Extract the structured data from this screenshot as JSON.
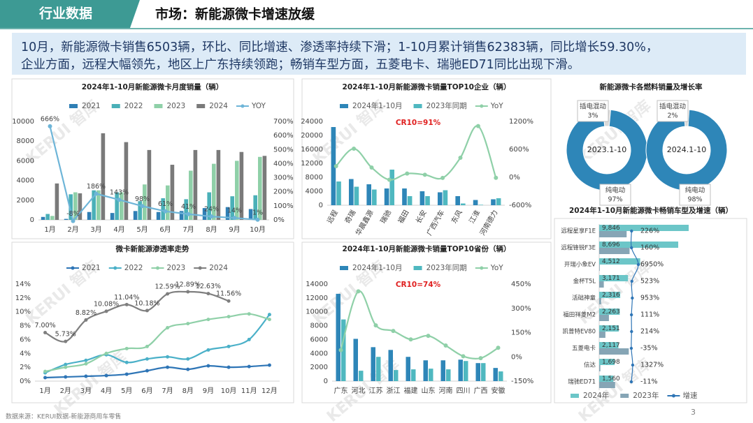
{
  "header": {
    "tag": "行业数据",
    "title": "市场：新能源微卡增速放缓"
  },
  "summary": [
    "10月，新能源微卡销售6503辆，环比、同比增速、渗透率持续下滑；1-10月累计销售62383辆，同比增长59.30%，",
    "企业方面，远程大幅领先，地区上广东持续领跑；畅销车型方面，五菱电卡、瑞驰ED71同比出现下滑。"
  ],
  "watermark": "KERUI 智库",
  "footer": {
    "source": "数据来源：KERUI数据-新能源商用车零售",
    "page": "3"
  },
  "chart_data": [
    {
      "type": "bar",
      "title": "2024年1-10月新能源微卡月度销量（辆）",
      "categories": [
        "1月",
        "2月",
        "3月",
        "4月",
        "5月",
        "6月",
        "7月",
        "8月",
        "9月",
        "10月"
      ],
      "series": [
        {
          "name": "2021",
          "color": "#2f7fb5",
          "values": [
            300,
            100,
            800,
            700,
            900,
            800,
            900,
            1200,
            1300,
            1100
          ]
        },
        {
          "name": "2022",
          "color": "#4ab0b8",
          "values": [
            600,
            2600,
            3000,
            2800,
            1900,
            2200,
            2100,
            2800,
            2400,
            2500
          ]
        },
        {
          "name": "2023",
          "color": "#8fd0a8",
          "values": [
            400,
            2800,
            3000,
            2800,
            3600,
            3500,
            5000,
            5700,
            6000,
            6400
          ]
        },
        {
          "name": "2024",
          "color": "#7a7a7a",
          "values": [
            3700,
            2700,
            8800,
            7900,
            7100,
            5600,
            7100,
            7100,
            6900,
            6503
          ]
        },
        {
          "name": "YOY",
          "color": "#6eb5d8",
          "type": "line",
          "axis": "y2",
          "values": [
            666,
            -8,
            186,
            143,
            98,
            61,
            41,
            24,
            14,
            1
          ],
          "value_labels": [
            "666%",
            "-8%",
            "186%",
            "143%",
            "98%",
            "61%",
            "41%",
            "24%",
            "14%",
            "1%"
          ]
        }
      ],
      "ylim": [
        0,
        10000
      ],
      "yticks": [
        0,
        2000,
        4000,
        6000,
        8000,
        10000
      ],
      "y2lim": [
        0,
        700
      ],
      "y2ticks": [
        {
          "value": 0,
          "label": "0%"
        },
        {
          "value": 100,
          "label": "100%"
        },
        {
          "value": 200,
          "label": "200%"
        },
        {
          "value": 300,
          "label": "300%"
        },
        {
          "value": 400,
          "label": "400%"
        },
        {
          "value": 500,
          "label": "500%"
        },
        {
          "value": 600,
          "label": "600%"
        },
        {
          "value": 700,
          "label": "700%"
        }
      ]
    },
    {
      "type": "bar",
      "title": "2024年1-10月新能源微卡销量TOP10企业（辆）",
      "annotation": "CR10=91%",
      "categories": [
        "远程",
        "奇瑞",
        "华晨鑫源",
        "瑞驰",
        "福田",
        "长安",
        "广西汽车",
        "东风",
        "江淮",
        "河南德力"
      ],
      "series": [
        {
          "name": "2024年1-10月",
          "color": "#2e86b8",
          "values": [
            22400,
            7500,
            6000,
            4800,
            4800,
            4000,
            3700,
            2600,
            1500,
            1700
          ]
        },
        {
          "name": "2023年同期",
          "color": "#4fb8c0",
          "values": [
            6800,
            5300,
            4500,
            10200,
            2600,
            2600,
            4300,
            500,
            130,
            2000
          ]
        },
        {
          "name": "YoY",
          "color": "#8fd0a8",
          "type": "line",
          "axis": "y2",
          "smooth": true,
          "values": [
            240,
            615,
            210,
            -53,
            80,
            54,
            -14,
            420,
            1100,
            -12
          ]
        }
      ],
      "ylim": [
        0,
        24000
      ],
      "yticks": [
        0,
        4000,
        8000,
        12000,
        16000,
        20000,
        24000
      ],
      "y2lim": [
        -600,
        1200
      ],
      "y2ticks": [
        {
          "value": -600,
          "label": "-600%"
        },
        {
          "value": 0,
          "label": "0%"
        },
        {
          "value": 600,
          "label": "600%"
        },
        {
          "value": 1200,
          "label": "1200%"
        }
      ]
    },
    {
      "type": "pie",
      "title": "新能源微卡各燃料销量及增长率",
      "colors": [
        "#d9d9d9",
        "#2e86b8"
      ],
      "pies": [
        {
          "label": "2023.1-10",
          "categories": [
            "插电混动",
            "纯电动"
          ],
          "values": [
            3,
            97
          ],
          "value_labels": [
            "3%",
            "97%"
          ]
        },
        {
          "label": "2024.1-10",
          "categories": [
            "插电混动",
            "纯电动"
          ],
          "values": [
            2,
            98
          ],
          "value_labels": [
            "2%",
            "98%"
          ]
        }
      ]
    },
    {
      "type": "line",
      "title": "微卡新能源渗透率走势",
      "smooth": true,
      "categories": [
        "1月",
        "2月",
        "3月",
        "4月",
        "5月",
        "6月",
        "7月",
        "8月",
        "9月",
        "10月",
        "11月",
        "12月"
      ],
      "series": [
        {
          "name": "2021",
          "color": "#2e75b6",
          "values": [
            0.5,
            0.6,
            0.7,
            0.8,
            1.0,
            1.5,
            2.0,
            1.7,
            2.2,
            2.0,
            2.1,
            2.3
          ]
        },
        {
          "name": "2022",
          "color": "#4ab0c8",
          "values": [
            1.2,
            2.4,
            3.0,
            3.8,
            2.7,
            3.2,
            3.5,
            3.2,
            4.5,
            5.0,
            6.0,
            9.6
          ]
        },
        {
          "name": "2023",
          "color": "#8fd0a8",
          "values": [
            1.4,
            2.0,
            2.5,
            4.0,
            4.7,
            5.0,
            7.7,
            8.3,
            8.9,
            9.3,
            9.7,
            8.9
          ]
        },
        {
          "name": "2024",
          "color": "#7f7f7f",
          "values": [
            7.0,
            5.73,
            8.82,
            10.08,
            11.04,
            10.18,
            12.59,
            12.89,
            12.63,
            11.56,
            null,
            null
          ],
          "value_labels": [
            "7.00%",
            "5.73%",
            "8.82%",
            "10.08%",
            "11.04%",
            "10.18%",
            "12.59%",
            "12.89%",
            "12.63%",
            "11.56%",
            null,
            null
          ]
        }
      ],
      "ylim": [
        0,
        14
      ],
      "yticks": [
        {
          "value": 0,
          "label": "0%"
        },
        {
          "value": 2,
          "label": "2%"
        },
        {
          "value": 4,
          "label": "4%"
        },
        {
          "value": 6,
          "label": "6%"
        },
        {
          "value": 8,
          "label": "8%"
        },
        {
          "value": 10,
          "label": "10%"
        },
        {
          "value": 12,
          "label": "12%"
        },
        {
          "value": 14,
          "label": "14%"
        }
      ]
    },
    {
      "type": "bar",
      "title": "2024年1-10月新能源微卡销量TOP10省份（辆）",
      "annotation": "CR10=74%",
      "categories": [
        "广东",
        "河北",
        "江苏",
        "浙江",
        "福建",
        "山东",
        "河南",
        "四川",
        "广西",
        "安徽"
      ],
      "series": [
        {
          "name": "2024年1-10月",
          "color": "#2e86b8",
          "values": [
            12600,
            6100,
            4900,
            4500,
            3500,
            3000,
            3000,
            3100,
            2600,
            1900
          ]
        },
        {
          "name": "2023年同期",
          "color": "#4fb8c0",
          "values": [
            8900,
            1500,
            3500,
            1600,
            1700,
            1800,
            1700,
            2900,
            2600,
            1400
          ]
        },
        {
          "name": "YoY",
          "color": "#8fd0a8",
          "type": "line",
          "axis": "y2",
          "smooth": true,
          "values": [
            42,
            405,
            195,
            160,
            108,
            130,
            70,
            4,
            -8,
            56
          ]
        }
      ],
      "ylim": [
        0,
        14000
      ],
      "yticks": [
        0,
        2000,
        4000,
        6000,
        8000,
        10000,
        12000,
        14000
      ],
      "y2lim": [
        -150,
        450
      ],
      "y2ticks": [
        {
          "value": -150,
          "label": "-150%"
        },
        {
          "value": 0,
          "label": "0%"
        },
        {
          "value": 150,
          "label": "150%"
        },
        {
          "value": 300,
          "label": "300%"
        },
        {
          "value": 450,
          "label": "450%"
        }
      ]
    },
    {
      "type": "bar",
      "orientation": "horizontal",
      "title": "2024年1-10月新能源微卡畅销车型及增速（辆）",
      "categories": [
        "远程星享F1E",
        "远程锋锐F3E",
        "开瑞小象EV",
        "金杯T5L",
        "活础神童",
        "福田祥菱M2",
        "凯普特EV80",
        "五菱电卡",
        "信达",
        "瑞驰ED71"
      ],
      "series": [
        {
          "name": "2024年",
          "color": "#6cc6c8",
          "values": [
            9846,
            8696,
            4512,
            3171,
            2316,
            2263,
            2151,
            2117,
            1698,
            1560
          ],
          "value_labels": [
            "9,846",
            "8,696",
            "4,512",
            "3,171",
            "2,316",
            "2,263",
            "2,151",
            "2,117",
            "1,698",
            "1,560"
          ]
        },
        {
          "name": "2023年",
          "color": "#86a5b5",
          "values": [
            3020,
            3345,
            64,
            509,
            220,
            1072,
            685,
            3257,
            128,
            1753
          ]
        },
        {
          "name": "增速",
          "color": "#2e75b6",
          "type": "line",
          "values": [
            226,
            160,
            6950,
            523,
            953,
            111,
            214,
            -35,
            1327,
            -11
          ],
          "value_labels": [
            "226%",
            "160%",
            "6950%",
            "523%",
            "953%",
            "111%",
            "214%",
            "-35%",
            "1327%",
            "-11%"
          ]
        }
      ]
    }
  ]
}
